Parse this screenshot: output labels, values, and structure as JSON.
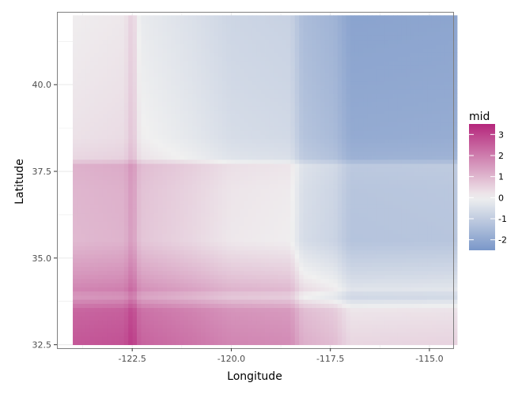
{
  "chart_data": {
    "type": "heatmap",
    "title": "",
    "xlabel": "Longitude",
    "ylabel": "Latitude",
    "xlim": [
      -124.4,
      -114.4
    ],
    "ylim": [
      32.4,
      42.1
    ],
    "data_x_range": [
      -124.0,
      -114.3
    ],
    "data_y_range": [
      32.5,
      42.0
    ],
    "x_ticks": [
      -122.5,
      -120.0,
      -117.5,
      -115.0
    ],
    "x_tick_labels": [
      "-122.5",
      "-120.0",
      "-117.5",
      "-115.0"
    ],
    "y_ticks": [
      32.5,
      35.0,
      37.5,
      40.0
    ],
    "y_tick_labels": [
      "32.5",
      "35.0",
      "37.5",
      "40.0"
    ],
    "x_effect": [
      {
        "x": -124.0,
        "v": 0.55
      },
      {
        "x": -122.7,
        "v": 0.65
      },
      {
        "x": -122.5,
        "v": 1.1
      },
      {
        "x": -122.3,
        "v": 0.35
      },
      {
        "x": -121.0,
        "v": 0.05
      },
      {
        "x": -120.0,
        "v": -0.25
      },
      {
        "x": -118.5,
        "v": -0.35
      },
      {
        "x": -118.2,
        "v": -0.95
      },
      {
        "x": -117.4,
        "v": -1.2
      },
      {
        "x": -117.0,
        "v": -1.65
      },
      {
        "x": -114.3,
        "v": -1.6
      }
    ],
    "y_effect": [
      {
        "y": 32.5,
        "v": 2.1
      },
      {
        "y": 33.5,
        "v": 1.85
      },
      {
        "y": 33.9,
        "v": 0.9
      },
      {
        "y": 34.1,
        "v": 1.3
      },
      {
        "y": 34.5,
        "v": 1.0
      },
      {
        "y": 35.5,
        "v": 0.4
      },
      {
        "y": 37.0,
        "v": 0.45
      },
      {
        "y": 37.7,
        "v": 0.55
      },
      {
        "y": 37.85,
        "v": -0.1
      },
      {
        "y": 38.5,
        "v": -0.3
      },
      {
        "y": 40.0,
        "v": -0.4
      },
      {
        "y": 42.0,
        "v": -0.5
      }
    ],
    "colorscale": {
      "name": "mid",
      "min": -2.5,
      "max": 3.5,
      "low_color": "#7a97c9",
      "mid_color": "#f0f0f0",
      "high_color": "#b5267b",
      "breaks": [
        3,
        2,
        1,
        0,
        -1,
        -2
      ],
      "break_labels": [
        "3",
        "2",
        "1",
        "0",
        "-1",
        "-2"
      ]
    },
    "grid": true,
    "legend_position": "right",
    "background": "#ffffff",
    "grid_color": "#ebebeb",
    "panel_border_color": "#7f7f7f"
  }
}
